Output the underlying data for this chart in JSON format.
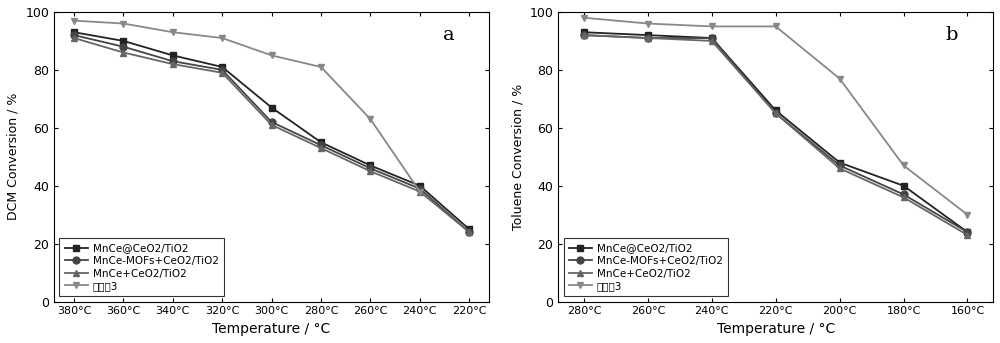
{
  "chart_a": {
    "title": "a",
    "xlabel": "Temperature / °C",
    "ylabel": "DCM Conversion / %",
    "x_labels": [
      "380°C",
      "360°C",
      "340°C",
      "320°C",
      "300°C",
      "280°C",
      "260°C",
      "240°C",
      "220°C"
    ],
    "x_values": [
      380,
      360,
      340,
      320,
      300,
      280,
      260,
      240,
      220
    ],
    "series": [
      {
        "label": "MnCe@CeO2/TiO2",
        "marker": "s",
        "color": "#222222",
        "linestyle": "-",
        "data": [
          93,
          90,
          85,
          81,
          67,
          55,
          47,
          40,
          25
        ]
      },
      {
        "label": "MnCe-MOFs+CeO2/TiO2",
        "marker": "o",
        "color": "#444444",
        "linestyle": "-",
        "data": [
          92,
          88,
          83,
          80,
          62,
          54,
          46,
          39,
          24
        ]
      },
      {
        "label": "MnCe+CeO2/TiO2",
        "marker": "^",
        "color": "#666666",
        "linestyle": "-",
        "data": [
          91,
          86,
          82,
          79,
          61,
          53,
          45,
          38,
          24
        ]
      },
      {
        "label": "实施卹3",
        "marker": "v",
        "color": "#888888",
        "linestyle": "-",
        "data": [
          97,
          96,
          93,
          91,
          85,
          81,
          63,
          38,
          null
        ]
      }
    ],
    "ylim": [
      0,
      100
    ],
    "yticks": [
      0,
      20,
      40,
      60,
      80,
      100
    ]
  },
  "chart_b": {
    "title": "b",
    "xlabel": "Temperature / °C",
    "ylabel": "Toluene Conversion / %",
    "x_labels": [
      "280°C",
      "260°C",
      "240°C",
      "220°C",
      "200°C",
      "180°C",
      "160°C"
    ],
    "x_values": [
      280,
      260,
      240,
      220,
      200,
      180,
      160
    ],
    "series": [
      {
        "label": "MnCe@CeO2/TiO2",
        "marker": "s",
        "color": "#222222",
        "linestyle": "-",
        "data": [
          93,
          92,
          91,
          66,
          48,
          40,
          24
        ]
      },
      {
        "label": "MnCe-MOFs+CeO2/TiO2",
        "marker": "o",
        "color": "#444444",
        "linestyle": "-",
        "data": [
          92,
          91,
          91,
          65,
          47,
          37,
          24
        ]
      },
      {
        "label": "MnCe+CeO2/TiO2",
        "marker": "^",
        "color": "#666666",
        "linestyle": "-",
        "data": [
          92,
          91,
          90,
          65,
          46,
          36,
          23
        ]
      },
      {
        "label": "实施卹3",
        "marker": "v",
        "color": "#888888",
        "linestyle": "-",
        "data": [
          98,
          96,
          95,
          95,
          77,
          47,
          30
        ]
      }
    ],
    "ylim": [
      0,
      100
    ],
    "yticks": [
      0,
      20,
      40,
      60,
      80,
      100
    ]
  }
}
